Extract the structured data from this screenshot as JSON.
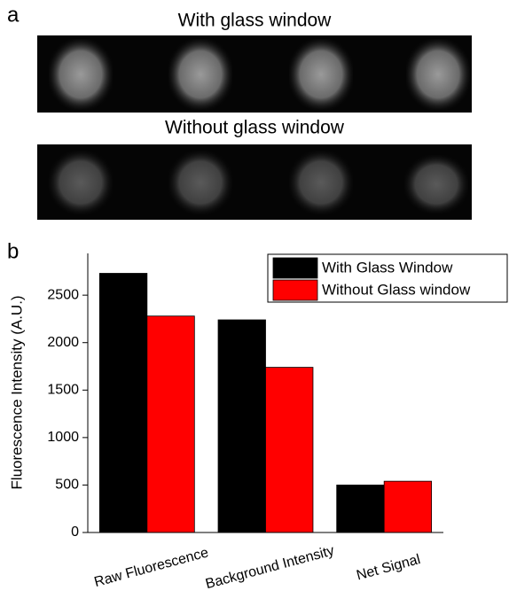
{
  "panel_a": {
    "label": "a",
    "top_title": "With glass window",
    "bottom_title": "Without glass window"
  },
  "chart_data": {
    "type": "bar",
    "panel_label": "b",
    "ylabel": "Fluorescence Intensity (A.U.)",
    "categories": [
      "Raw Fluorescence",
      "Background Intensity",
      "Net Signal"
    ],
    "series": [
      {
        "name": "With Glass Window",
        "color": "#000000",
        "values": [
          2730,
          2240,
          500
        ]
      },
      {
        "name": "Without Glass window",
        "color": "#ff0000",
        "values": [
          2280,
          1740,
          540
        ]
      }
    ],
    "ylim": [
      0,
      2940
    ],
    "yticks": [
      0,
      500,
      1000,
      1500,
      2000,
      2500
    ],
    "legend": "upper right"
  }
}
